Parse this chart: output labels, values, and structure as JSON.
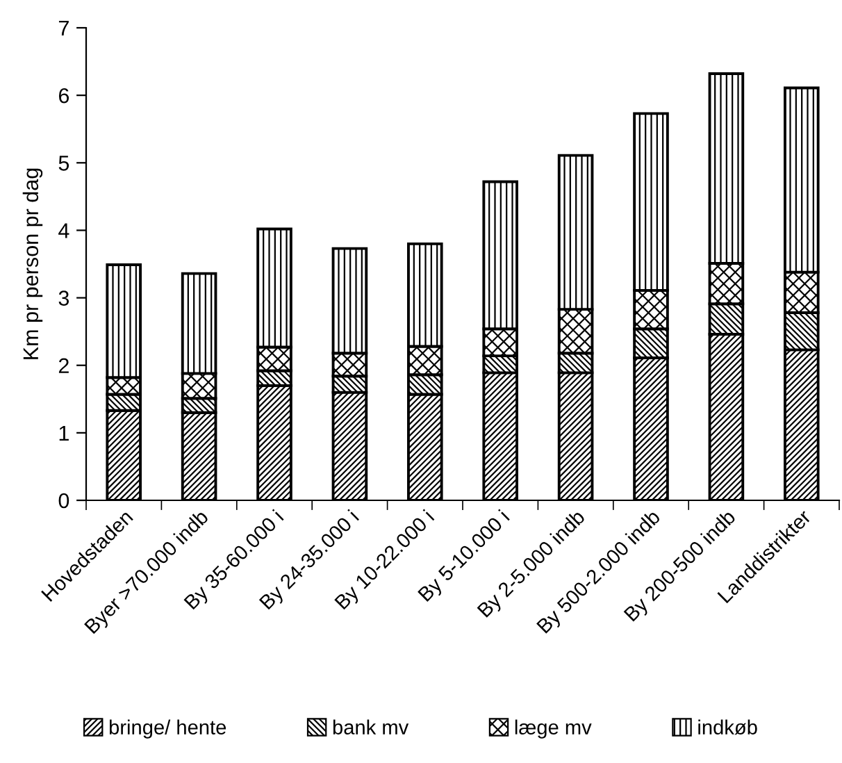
{
  "chart_data": {
    "type": "bar",
    "ylabel": "Km pr person pr dag",
    "stacked": true,
    "categories": [
      "Hovedstaden",
      "Byer >70.000 indb",
      "By 35-60.000 i",
      "By 24-35.000 i",
      "By 10-22.000 i",
      "By 5-10.000 i",
      "By 2-5.000 indb",
      "By 500-2.000 indb",
      "By 200-500 indb",
      "Landdistrikter"
    ],
    "series": [
      {
        "name": "bringe/ hente",
        "color": "#000000",
        "values": [
          1.33,
          1.3,
          1.7,
          1.6,
          1.57,
          1.89,
          1.89,
          2.11,
          2.46,
          2.23
        ]
      },
      {
        "name": "bank mv",
        "color": "#000000",
        "values": [
          0.24,
          0.21,
          0.22,
          0.24,
          0.29,
          0.25,
          0.29,
          0.43,
          0.45,
          0.55
        ]
      },
      {
        "name": "læge mv",
        "color": "#000000",
        "values": [
          0.25,
          0.37,
          0.35,
          0.34,
          0.42,
          0.4,
          0.65,
          0.57,
          0.6,
          0.6
        ]
      },
      {
        "name": "indkøb",
        "color": "#000000",
        "values": [
          1.67,
          1.48,
          1.75,
          1.55,
          1.52,
          2.18,
          2.28,
          2.62,
          2.81,
          2.73
        ]
      }
    ],
    "ylim": [
      0,
      7
    ],
    "yticks": [
      0,
      1,
      2,
      3,
      4,
      5,
      6,
      7
    ],
    "grid": false,
    "legend": "bottom"
  }
}
